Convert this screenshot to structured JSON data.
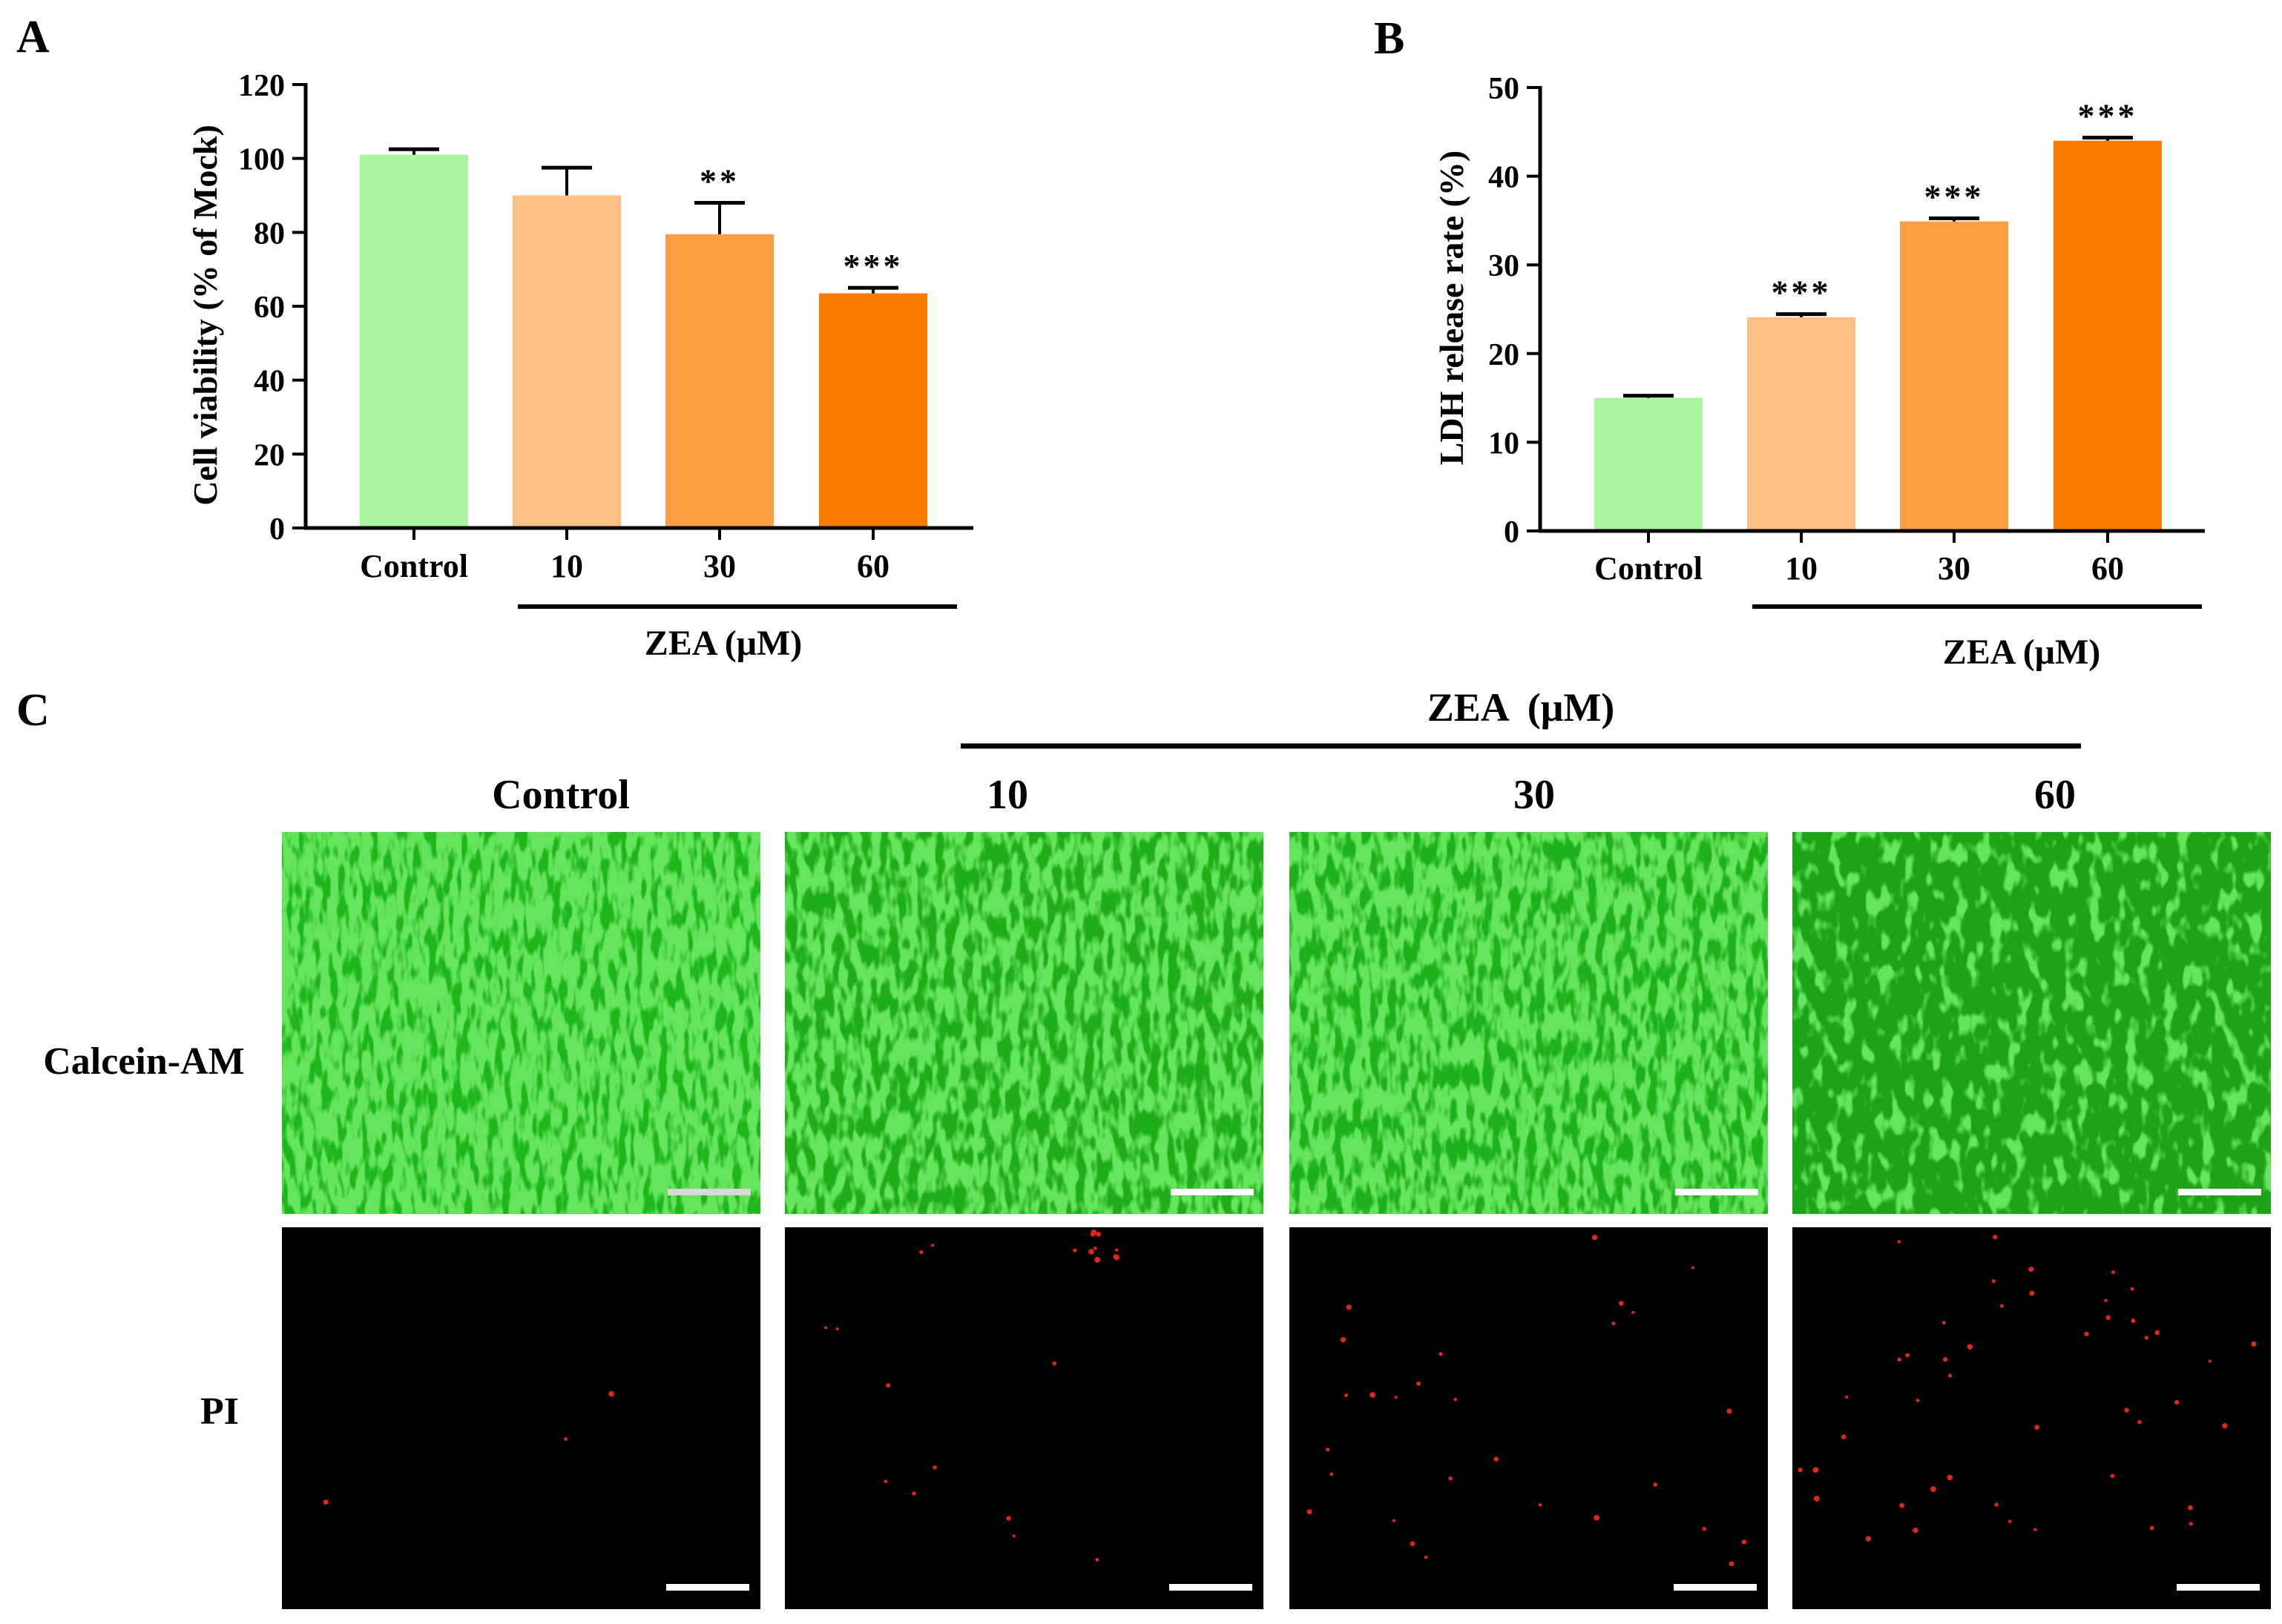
{
  "panel_labels": {
    "a": "A",
    "b": "B",
    "c": "C"
  },
  "colors": {
    "control": "#aaf5a0",
    "zea_10": "#fdbf86",
    "zea_30": "#fb9f42",
    "zea_60": "#fb7b00",
    "axis": "#000000",
    "calcein_green": "#22c21c",
    "pi_red": "#e0261a",
    "scale_bar_light": "#d8d8d8",
    "scale_bar": "#ffffff"
  },
  "chart_data": [
    {
      "type": "bar",
      "panel": "A",
      "categories": [
        "Control",
        "10",
        "30",
        "60"
      ],
      "values": [
        101,
        90,
        79.5,
        63.5
      ],
      "errors": [
        1.5,
        7.5,
        8.5,
        1.5
      ],
      "significance": [
        "",
        "",
        "**",
        "***"
      ],
      "ylabel": "Cell viability (% of Mock)",
      "xlabel": "ZEA (μM)",
      "ylim": [
        0,
        120
      ],
      "yticks": [
        0,
        20,
        40,
        60,
        80,
        100,
        120
      ],
      "grid": false
    },
    {
      "type": "bar",
      "panel": "B",
      "categories": [
        "Control",
        "10",
        "30",
        "60"
      ],
      "values": [
        15,
        24.1,
        34.9,
        44
      ],
      "errors": [
        0.25,
        0.35,
        0.35,
        0.35
      ],
      "significance": [
        "",
        "***",
        "***",
        "***"
      ],
      "ylabel": "LDH release rate (%)",
      "xlabel": "ZEA (μM)",
      "ylim": [
        0,
        50
      ],
      "yticks": [
        0,
        10,
        20,
        30,
        40,
        50
      ],
      "grid": false
    }
  ],
  "panel_c": {
    "group_label": "ZEA  (μM)",
    "columns": [
      "Control",
      "10",
      "30",
      "60"
    ],
    "rows": [
      "Calcein-AM",
      "PI"
    ],
    "green_coverage": [
      0.92,
      0.8,
      0.85,
      0.62
    ],
    "pi_dot_counts": [
      3,
      22,
      28,
      45
    ]
  }
}
